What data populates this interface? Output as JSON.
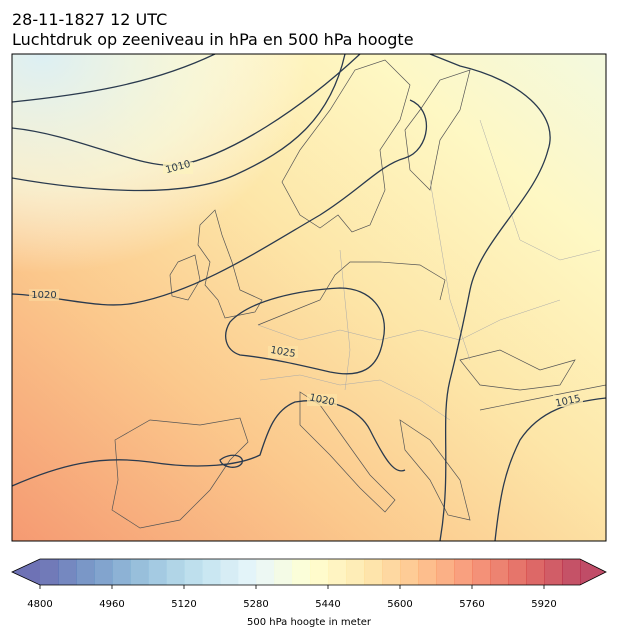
{
  "header": {
    "title": "28-11-1827 12 UTC",
    "subtitle": "Luchtdruk op zeeniveau in hPa en 500 hPa hoogte"
  },
  "contour_labels": [
    1010,
    1020,
    1025,
    1020,
    1015
  ],
  "colorbar": {
    "label": "500 hPa hoogte in meter",
    "lim": [
      4800,
      6000
    ],
    "step": 40,
    "ticks": [
      4800,
      4960,
      5120,
      5280,
      5440,
      5600,
      5760,
      5920
    ],
    "extend": "both"
  }
}
